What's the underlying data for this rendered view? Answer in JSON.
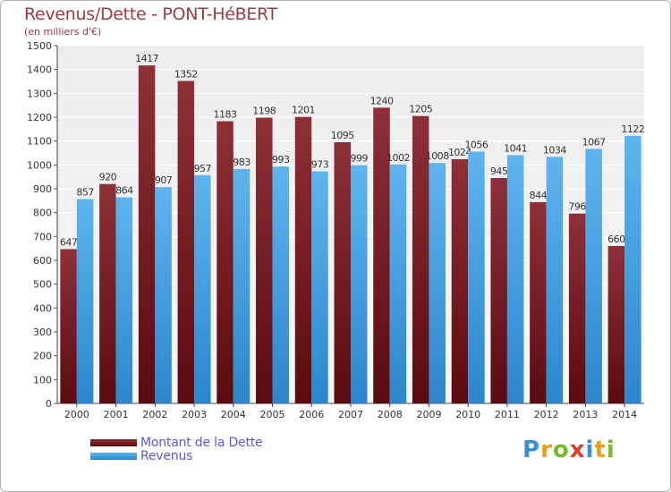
{
  "chart_data": {
    "type": "bar",
    "title": "Revenus/Dette - PONT-HéBERT",
    "subtitle": "(en milliers d'€)",
    "categories": [
      "2000",
      "2001",
      "2002",
      "2003",
      "2004",
      "2005",
      "2006",
      "2007",
      "2008",
      "2009",
      "2010",
      "2011",
      "2012",
      "2013",
      "2014"
    ],
    "series": [
      {
        "name": "Montant de la Dette",
        "color": "#7a1f28",
        "values": [
          647,
          920,
          1417,
          1352,
          1183,
          1198,
          1201,
          1095,
          1240,
          1205,
          1024,
          945,
          844,
          796,
          660
        ]
      },
      {
        "name": "Revenus",
        "color": "#4da6e8",
        "values": [
          857,
          864,
          907,
          957,
          983,
          993,
          973,
          999,
          1002,
          1008,
          1056,
          1041,
          1034,
          1067,
          1122
        ]
      }
    ],
    "yticks": [
      0,
      100,
      200,
      300,
      400,
      500,
      600,
      700,
      800,
      900,
      1000,
      1100,
      1200,
      1300,
      1400,
      1500
    ],
    "ylim": [
      0,
      1500
    ],
    "grid": true,
    "legend_position": "bottom-left"
  },
  "logo": {
    "letters": [
      "P",
      "r",
      "o",
      "x",
      "i",
      "t",
      "i"
    ],
    "colors": [
      "#3a8fd6",
      "#e8a020",
      "#7ab929",
      "#e0402a",
      "#3a8fd6",
      "#e8a020",
      "#7ab929"
    ]
  }
}
